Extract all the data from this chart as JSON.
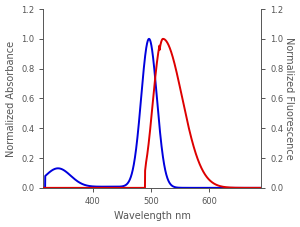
{
  "title": "",
  "xlabel": "Wavelength nm",
  "ylabel_left": "Normalized Absorbance",
  "ylabel_right": "Normalized Fluorescence",
  "xlim": [
    315,
    690
  ],
  "ylim": [
    0.0,
    1.2
  ],
  "x_ticks": [
    400,
    500,
    600
  ],
  "y_ticks": [
    0.0,
    0.2,
    0.4,
    0.6,
    0.8,
    1.0,
    1.2
  ],
  "excitation_peak": 497,
  "emission_peak": 521,
  "blue_color": "#0000dd",
  "red_color": "#dd0000",
  "bg_color": "#ffffff",
  "font_size": 7,
  "linewidth": 1.4,
  "tick_color": "#555555",
  "spine_color": "#555555"
}
